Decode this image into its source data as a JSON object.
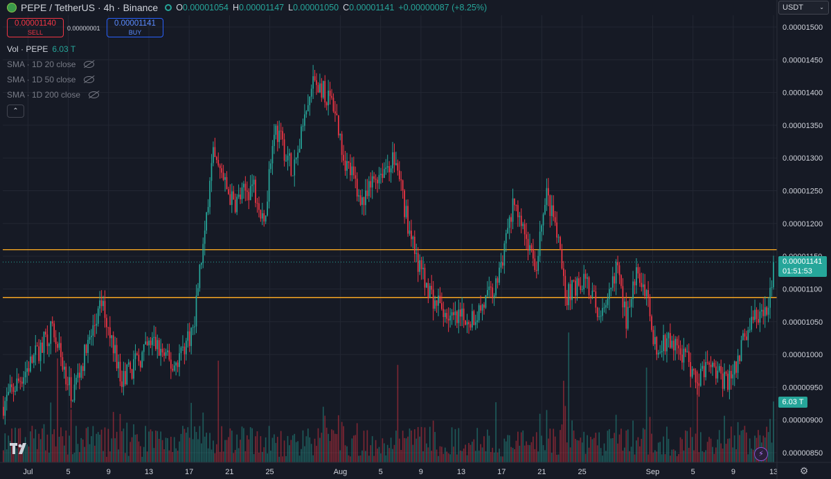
{
  "header": {
    "pair": "PEPE / TetherUS · 4h · Binance",
    "ohlc": [
      {
        "key": "O",
        "value": "0.00001054"
      },
      {
        "key": "H",
        "value": "0.00001147"
      },
      {
        "key": "L",
        "value": "0.00001050"
      },
      {
        "key": "C",
        "value": "0.00001141"
      }
    ],
    "change": "+0.00000087 (+8.25%)"
  },
  "trade": {
    "sell_price": "0.00001140",
    "sell_label": "SELL",
    "spread": "0.00000001",
    "buy_price": "0.00001141",
    "buy_label": "BUY"
  },
  "indicators": {
    "vol_label": "Vol · PEPE",
    "vol_value": "6.03 T",
    "sma": [
      "SMA · 1D 20 close",
      "SMA · 1D 50 close",
      "SMA · 1D 200 close"
    ],
    "collapse_glyph": "⌃"
  },
  "currency": "USDT",
  "price_tag": {
    "price": "0.00001141",
    "countdown": "01:51:53"
  },
  "vol_tag": "6.03 T",
  "colors": {
    "up": "#26a69a",
    "down": "#f23645",
    "level": "#f5a623",
    "background": "#161a25",
    "grid": "#232733"
  },
  "chart_data": {
    "type": "candlestick",
    "interval": "4h",
    "price_axis": {
      "ticks": [
        "0.00001500",
        "0.00001450",
        "0.00001400",
        "0.00001350",
        "0.00001300",
        "0.00001250",
        "0.00001200",
        "0.00001150",
        "0.00001100",
        "0.00001050",
        "0.00001000",
        "0.00000950",
        "0.00000900",
        "0.00000850"
      ],
      "ylim": [
        8.3e-06,
        1.53e-05
      ]
    },
    "time_axis": {
      "ticks": [
        "Jul",
        "5",
        "9",
        "13",
        "17",
        "21",
        "25",
        "Aug",
        "5",
        "9",
        "13",
        "17",
        "21",
        "25",
        "Sep",
        "5",
        "9",
        "13"
      ]
    },
    "horizontal_levels": [
      1.16e-05,
      1.087e-05
    ],
    "current_price": 1.141e-05,
    "price_path": [
      [
        0,
        9.2e-06
      ],
      [
        3,
        9.9e-06
      ],
      [
        5,
        1.04e-05
      ],
      [
        7,
        9.4e-06
      ],
      [
        10,
        1.08e-05
      ],
      [
        12,
        9.6e-06
      ],
      [
        15,
        1.02e-05
      ],
      [
        17,
        9.8e-06
      ],
      [
        19,
        1.04e-05
      ],
      [
        20,
        1.17e-05
      ],
      [
        21,
        1.3e-05
      ],
      [
        23,
        1.23e-05
      ],
      [
        25,
        1.26e-05
      ],
      [
        26,
        1.19e-05
      ],
      [
        27,
        1.35e-05
      ],
      [
        29,
        1.28e-05
      ],
      [
        31,
        1.42e-05
      ],
      [
        33,
        1.38e-05
      ],
      [
        34,
        1.3e-05
      ],
      [
        36,
        1.23e-05
      ],
      [
        37,
        1.27e-05
      ],
      [
        39,
        1.3e-05
      ],
      [
        41,
        1.15e-05
      ],
      [
        43,
        1.08e-05
      ],
      [
        45,
        1.05e-05
      ],
      [
        47,
        1.06e-05
      ],
      [
        49,
        1.1e-05
      ],
      [
        51,
        1.24e-05
      ],
      [
        52,
        1.18e-05
      ],
      [
        53,
        1.13e-05
      ],
      [
        54,
        1.25e-05
      ],
      [
        55,
        1.19e-05
      ],
      [
        56,
        1.09e-05
      ],
      [
        58,
        1.12e-05
      ],
      [
        59,
        1.07e-05
      ],
      [
        60,
        1.06e-05
      ],
      [
        61,
        1.14e-05
      ],
      [
        62,
        1.05e-05
      ],
      [
        63,
        1.12e-05
      ],
      [
        64,
        1.1e-05
      ],
      [
        65,
        1e-05
      ],
      [
        66,
        1.02e-05
      ],
      [
        67,
        1.01e-05
      ],
      [
        68,
        9.9e-06
      ],
      [
        69,
        9.6e-06
      ],
      [
        70,
        9.8e-06
      ],
      [
        72,
        9.6e-06
      ],
      [
        73,
        9.9e-06
      ],
      [
        74,
        1.04e-05
      ],
      [
        75,
        1.06e-05
      ],
      [
        76,
        1.06e-05
      ],
      [
        76.6,
        1.141e-05
      ]
    ],
    "volume_axis": {
      "label": "Vol · PEPE",
      "last": "6.03 T"
    }
  }
}
